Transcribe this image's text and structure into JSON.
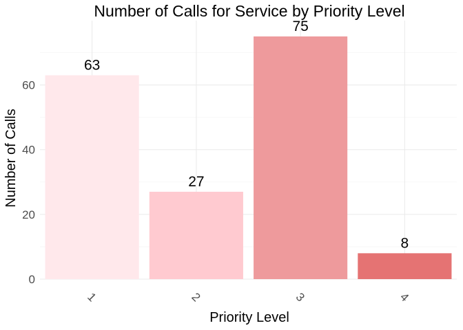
{
  "chart_data": {
    "type": "bar",
    "title": "Number of Calls for Service by Priority Level",
    "xlabel": "Priority Level",
    "ylabel": "Number of Calls",
    "categories": [
      "1",
      "2",
      "3",
      "4"
    ],
    "values": [
      63,
      27,
      75,
      8
    ],
    "colors": [
      "#ffe8eb",
      "#ffcad0",
      "#ee9a9c",
      "#e57373"
    ],
    "ylim": [
      0,
      75
    ],
    "yticks": [
      0,
      20,
      40,
      60
    ],
    "grid": true,
    "legend": "none"
  }
}
